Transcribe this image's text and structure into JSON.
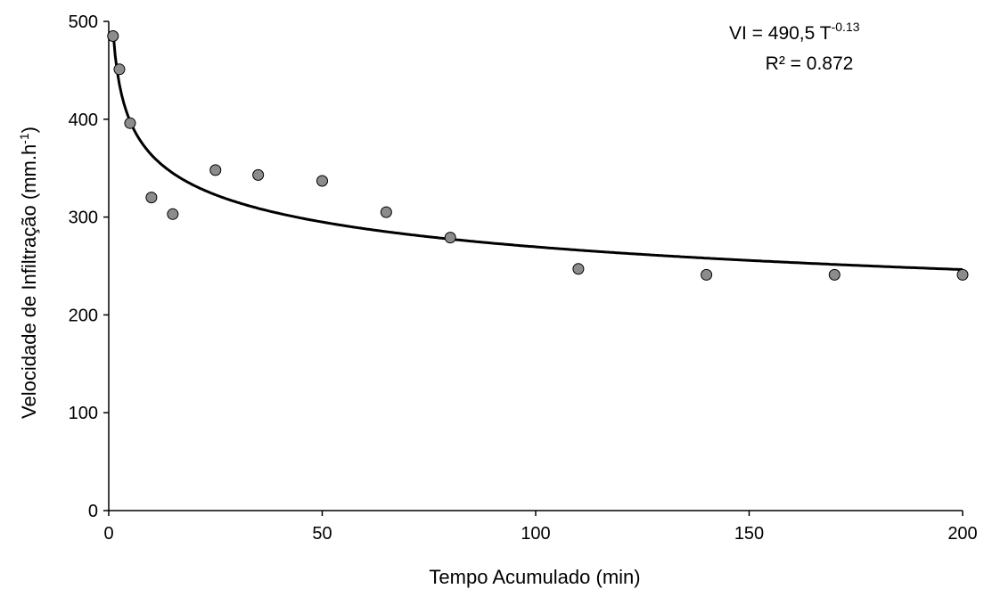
{
  "chart_data": {
    "type": "scatter",
    "title": "",
    "xlabel": "Tempo Acumulado (min)",
    "ylabel_main": "Velocidade de Infiltração (mm.h",
    "ylabel_sup": "-1",
    "ylabel_close": ")",
    "xlim": [
      0,
      200
    ],
    "ylim": [
      0,
      500
    ],
    "xticks": [
      0,
      50,
      100,
      150,
      200
    ],
    "yticks": [
      0,
      100,
      200,
      300,
      400,
      500
    ],
    "xtick_labels": [
      "0",
      "50",
      "100",
      "150",
      "200"
    ],
    "ytick_labels": [
      "0",
      "100",
      "200",
      "300",
      "400",
      "500"
    ],
    "grid": false,
    "legend": "none",
    "series": [
      {
        "kind": "points",
        "marker_color": "#8c8c8c",
        "marker_edge": "#000000",
        "x": [
          1,
          2.5,
          5,
          10,
          15,
          25,
          35,
          50,
          65,
          80,
          110,
          140,
          170,
          200
        ],
        "y": [
          485,
          451,
          396,
          320,
          303,
          348,
          343,
          337,
          305,
          279,
          247,
          241,
          241,
          241
        ]
      },
      {
        "kind": "fit",
        "model": "power",
        "a": 490.5,
        "b": -0.13,
        "line_color": "#000000"
      }
    ],
    "annotation": {
      "eq_prefix": "VI = 490,5 T",
      "eq_sup": "-0.13",
      "r2": "R² = 0.872"
    }
  }
}
